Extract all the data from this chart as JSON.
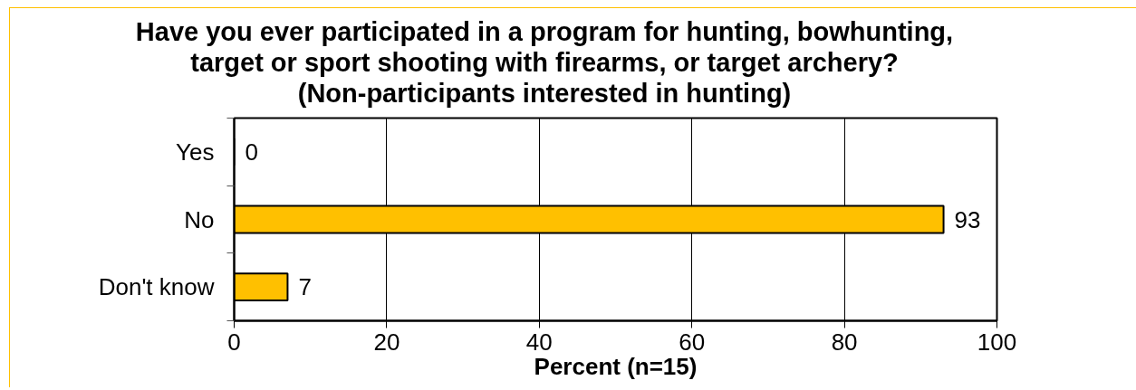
{
  "chart_data": {
    "type": "bar",
    "orientation": "horizontal",
    "title": "Have you ever participated in a program for hunting, bowhunting,\ntarget or sport shooting with firearms, or target archery?\n(Non-participants interested in hunting)",
    "xlabel": "Percent (n=15)",
    "categories": [
      "Yes",
      "No",
      "Don't know"
    ],
    "values": [
      0,
      93,
      7
    ],
    "color": "#ffc000",
    "xlim": [
      0,
      100
    ],
    "xticks": [
      0,
      20,
      40,
      60,
      80,
      100
    ],
    "grid": "x",
    "data_labels": true
  }
}
